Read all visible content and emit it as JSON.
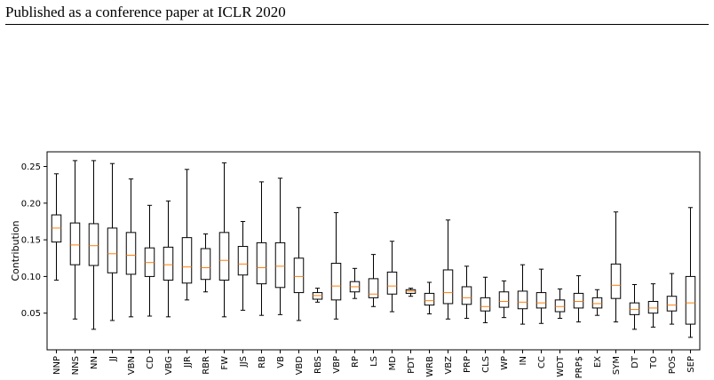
{
  "header": {
    "title": "Published as a conference paper at ICLR 2020"
  },
  "chart_data": {
    "type": "box",
    "title": "",
    "xlabel": "",
    "ylabel": "Contribution",
    "ylim": [
      0.0,
      0.27
    ],
    "yticks": [
      0.05,
      0.1,
      0.15,
      0.2,
      0.25
    ],
    "ytick_labels": [
      "0.05",
      "0.10",
      "0.15",
      "0.20",
      "0.25"
    ],
    "grid": false,
    "colors": {
      "box": "#000000",
      "median": "#ff7f0e"
    },
    "categories": [
      "NNP",
      "NNS",
      "NN",
      "JJ",
      "VBN",
      "CD",
      "VBG",
      "JJR",
      "RBR",
      "FW",
      "JJS",
      "RB",
      "VB",
      "VBD",
      "RBS",
      "VBP",
      "RP",
      "LS",
      "MD",
      "PDT",
      "WRB",
      "VBZ",
      "PRP",
      "CLS",
      "WP",
      "IN",
      "CC",
      "WDT",
      "PRP$",
      "EX",
      "SYM",
      "DT",
      "TO",
      "POS",
      "SEP"
    ],
    "boxes": [
      {
        "whislo": 0.095,
        "q1": 0.147,
        "med": 0.166,
        "q3": 0.184,
        "whishi": 0.24
      },
      {
        "whislo": 0.042,
        "q1": 0.116,
        "med": 0.143,
        "q3": 0.173,
        "whishi": 0.258
      },
      {
        "whislo": 0.028,
        "q1": 0.115,
        "med": 0.142,
        "q3": 0.172,
        "whishi": 0.258
      },
      {
        "whislo": 0.04,
        "q1": 0.105,
        "med": 0.131,
        "q3": 0.166,
        "whishi": 0.254
      },
      {
        "whislo": 0.045,
        "q1": 0.103,
        "med": 0.129,
        "q3": 0.16,
        "whishi": 0.233
      },
      {
        "whislo": 0.046,
        "q1": 0.1,
        "med": 0.119,
        "q3": 0.139,
        "whishi": 0.197
      },
      {
        "whislo": 0.045,
        "q1": 0.095,
        "med": 0.116,
        "q3": 0.14,
        "whishi": 0.203
      },
      {
        "whislo": 0.068,
        "q1": 0.091,
        "med": 0.113,
        "q3": 0.153,
        "whishi": 0.246
      },
      {
        "whislo": 0.079,
        "q1": 0.096,
        "med": 0.112,
        "q3": 0.138,
        "whishi": 0.158
      },
      {
        "whislo": 0.045,
        "q1": 0.095,
        "med": 0.122,
        "q3": 0.16,
        "whishi": 0.255
      },
      {
        "whislo": 0.054,
        "q1": 0.102,
        "med": 0.117,
        "q3": 0.141,
        "whishi": 0.175
      },
      {
        "whislo": 0.047,
        "q1": 0.09,
        "med": 0.112,
        "q3": 0.146,
        "whishi": 0.229
      },
      {
        "whislo": 0.048,
        "q1": 0.085,
        "med": 0.114,
        "q3": 0.146,
        "whishi": 0.234
      },
      {
        "whislo": 0.04,
        "q1": 0.078,
        "med": 0.1,
        "q3": 0.125,
        "whishi": 0.194
      },
      {
        "whislo": 0.065,
        "q1": 0.069,
        "med": 0.074,
        "q3": 0.078,
        "whishi": 0.084
      },
      {
        "whislo": 0.042,
        "q1": 0.068,
        "med": 0.087,
        "q3": 0.118,
        "whishi": 0.187
      },
      {
        "whislo": 0.07,
        "q1": 0.079,
        "med": 0.086,
        "q3": 0.093,
        "whishi": 0.111
      },
      {
        "whislo": 0.059,
        "q1": 0.071,
        "med": 0.076,
        "q3": 0.097,
        "whishi": 0.13
      },
      {
        "whislo": 0.052,
        "q1": 0.076,
        "med": 0.087,
        "q3": 0.106,
        "whishi": 0.148
      },
      {
        "whislo": 0.073,
        "q1": 0.077,
        "med": 0.08,
        "q3": 0.082,
        "whishi": 0.084
      },
      {
        "whislo": 0.049,
        "q1": 0.061,
        "med": 0.067,
        "q3": 0.077,
        "whishi": 0.092
      },
      {
        "whislo": 0.042,
        "q1": 0.063,
        "med": 0.078,
        "q3": 0.109,
        "whishi": 0.177
      },
      {
        "whislo": 0.043,
        "q1": 0.062,
        "med": 0.071,
        "q3": 0.086,
        "whishi": 0.114
      },
      {
        "whislo": 0.037,
        "q1": 0.053,
        "med": 0.059,
        "q3": 0.071,
        "whishi": 0.099
      },
      {
        "whislo": 0.044,
        "q1": 0.058,
        "med": 0.066,
        "q3": 0.079,
        "whishi": 0.094
      },
      {
        "whislo": 0.035,
        "q1": 0.056,
        "med": 0.065,
        "q3": 0.08,
        "whishi": 0.116
      },
      {
        "whislo": 0.036,
        "q1": 0.057,
        "med": 0.064,
        "q3": 0.078,
        "whishi": 0.11
      },
      {
        "whislo": 0.043,
        "q1": 0.052,
        "med": 0.059,
        "q3": 0.068,
        "whishi": 0.083
      },
      {
        "whislo": 0.038,
        "q1": 0.057,
        "med": 0.066,
        "q3": 0.077,
        "whishi": 0.101
      },
      {
        "whislo": 0.047,
        "q1": 0.057,
        "med": 0.063,
        "q3": 0.071,
        "whishi": 0.082
      },
      {
        "whislo": 0.038,
        "q1": 0.07,
        "med": 0.088,
        "q3": 0.117,
        "whishi": 0.188
      },
      {
        "whislo": 0.028,
        "q1": 0.048,
        "med": 0.055,
        "q3": 0.064,
        "whishi": 0.089
      },
      {
        "whislo": 0.031,
        "q1": 0.05,
        "med": 0.057,
        "q3": 0.066,
        "whishi": 0.09
      },
      {
        "whislo": 0.035,
        "q1": 0.053,
        "med": 0.061,
        "q3": 0.073,
        "whishi": 0.104
      },
      {
        "whislo": 0.017,
        "q1": 0.035,
        "med": 0.064,
        "q3": 0.1,
        "whishi": 0.194
      }
    ]
  }
}
